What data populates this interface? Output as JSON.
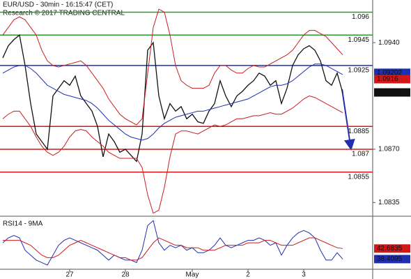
{
  "chart_data": [
    {
      "type": "line",
      "title": "EUR/USD - 30min - 16:15:47 (CET)",
      "subtitle": "Research © 2017 TRADING CENTRAL",
      "categories": [
        null,
        null,
        null,
        null,
        null,
        null,
        null,
        null,
        null,
        null,
        null,
        null,
        "27",
        null,
        null,
        null,
        null,
        null,
        null,
        null,
        null,
        null,
        "28",
        null,
        null,
        null,
        null,
        null,
        null,
        null,
        null,
        null,
        null,
        null,
        "May",
        null,
        null,
        null,
        null,
        null,
        null,
        null,
        null,
        null,
        "2",
        null,
        null,
        null,
        null,
        null,
        null,
        null,
        null,
        null,
        "3",
        null,
        null,
        null,
        null,
        null,
        null,
        null
      ],
      "series": [
        {
          "color": "#111111",
          "values": [
            1.093,
            1.0938,
            1.0942,
            1.0945,
            1.0925,
            1.09,
            1.088,
            1.0875,
            1.087,
            1.0905,
            1.091,
            1.0915,
            1.0912,
            1.0918,
            1.0905,
            1.09,
            1.0895,
            1.0885,
            1.0865,
            1.088,
            1.0875,
            1.0868,
            1.087,
            1.0866,
            1.0862,
            1.088,
            1.0935,
            1.094,
            1.0905,
            1.089,
            1.09,
            1.0895,
            1.0898,
            1.089,
            1.0893,
            1.0888,
            1.0887,
            1.0895,
            1.09,
            1.0915,
            1.0905,
            1.0898,
            1.0905,
            1.0908,
            1.0912,
            1.0915,
            1.092,
            1.0918,
            1.0912,
            1.0915,
            1.09,
            1.091,
            1.0925,
            1.0932,
            1.0936,
            1.0938,
            1.0935,
            1.0928,
            1.0915,
            1.0912,
            1.092,
            1.0907
          ]
        },
        {
          "color": "#1f2fb0",
          "values": [
            1.092,
            1.0922,
            1.0924,
            1.0925,
            1.0925,
            1.0923,
            1.092,
            1.0916,
            1.0912,
            1.091,
            1.0908,
            1.0906,
            1.0905,
            1.0904,
            1.0903,
            1.0902,
            1.09,
            1.0897,
            1.0893,
            1.0889,
            1.0886,
            1.0883,
            1.088,
            1.0878,
            1.0877,
            1.0876,
            1.0877,
            1.088,
            1.0884,
            1.0887,
            1.0889,
            1.0891,
            1.0892,
            1.0893,
            1.0894,
            1.0895,
            1.0895,
            1.0896,
            1.0897,
            1.0898,
            1.0899,
            1.09,
            1.0901,
            1.0902,
            1.0903,
            1.0905,
            1.0907,
            1.0909,
            1.0911,
            1.0912,
            1.0912,
            1.0913,
            1.0915,
            1.0918,
            1.0921,
            1.0924,
            1.0926,
            1.0926,
            1.0925,
            1.0923,
            1.0921,
            1.0919
          ]
        },
        {
          "color": "#c81e1e",
          "values": [
            1.0945,
            1.095,
            1.0955,
            1.0957,
            1.0955,
            1.095,
            1.0945,
            1.0935,
            1.0928,
            1.0925,
            1.0924,
            1.0925,
            1.0926,
            1.0927,
            1.0928,
            1.0925,
            1.092,
            1.0915,
            1.091,
            1.0903,
            1.0898,
            1.0893,
            1.089,
            1.0888,
            1.0886,
            1.089,
            1.092,
            1.095,
            1.0962,
            1.096,
            1.0945,
            1.0925,
            1.0915,
            1.0912,
            1.091,
            1.091,
            1.091,
            1.0912,
            1.092,
            1.0925,
            1.0925,
            1.0922,
            1.092,
            1.092,
            1.0923,
            1.0925,
            1.0924,
            1.0924,
            1.0926,
            1.0928,
            1.093,
            1.0932,
            1.0935,
            1.094,
            1.0945,
            1.0948,
            1.0948,
            1.0946,
            1.0944,
            1.094,
            1.0936,
            1.0932
          ]
        },
        {
          "color": "#c81e1e",
          "values": [
            1.089,
            1.0893,
            1.0895,
            1.0895,
            1.089,
            1.0885,
            1.0878,
            1.0872,
            1.0868,
            1.0866,
            1.0868,
            1.0872,
            1.0878,
            1.0882,
            1.0883,
            1.0882,
            1.0878,
            1.0875,
            1.0872,
            1.0868,
            1.0866,
            1.0864,
            1.0864,
            1.0864,
            1.0864,
            1.0858,
            1.084,
            1.0828,
            1.083,
            1.0845,
            1.0865,
            1.088,
            1.0882,
            1.0882,
            1.0881,
            1.088,
            1.0882,
            1.0884,
            1.0886,
            1.0885,
            1.0886,
            1.0888,
            1.089,
            1.089,
            1.0891,
            1.0892,
            1.0892,
            1.0893,
            1.0894,
            1.0893,
            1.0893,
            1.0895,
            1.0897,
            1.09,
            1.0903,
            1.0905,
            1.0904,
            1.0902,
            1.09,
            1.0898,
            1.0896,
            1.0894
          ]
        }
      ],
      "levels": [
        {
          "value": 1.096,
          "color": "#2e9a2e"
        },
        {
          "value": 1.0945,
          "color": "#2e9a2e"
        },
        {
          "value": 1.0925,
          "color": "#1f2fb0"
        },
        {
          "value": 1.0885,
          "color": "#d01818"
        },
        {
          "value": 1.087,
          "color": "#d01818"
        },
        {
          "value": 1.0855,
          "color": "#d01818"
        }
      ],
      "price_labels": [
        {
          "value": 1.09202,
          "label": "1.09202",
          "color": "#1f2fb0"
        },
        {
          "value": 1.0916,
          "label": "1.0916",
          "color": "#d01818"
        },
        {
          "value": 1.09073,
          "label": "1.09073",
          "color": "#111111"
        }
      ],
      "ylim": [
        1.0826,
        1.0968
      ],
      "yticks": [
        {
          "value": 1.094,
          "label": "1.0940"
        },
        {
          "value": 1.087,
          "label": "1.0870"
        },
        1.0835
      ]
    },
    {
      "type": "line",
      "title": "RSI14 - 9MA",
      "series": [
        {
          "color": "#1f2fb0",
          "values": [
            45,
            47,
            48,
            47,
            42,
            40,
            38,
            37,
            36,
            40,
            44,
            46,
            47,
            46,
            45,
            44,
            43,
            42,
            40,
            38,
            40,
            39,
            38,
            38,
            37,
            42,
            52,
            54,
            45,
            42,
            44,
            43,
            44,
            42,
            43,
            41,
            41,
            42,
            44,
            47,
            44,
            43,
            44,
            45,
            46,
            46,
            47,
            46,
            44,
            45,
            40,
            44,
            47,
            49,
            50,
            49,
            47,
            42,
            38,
            38,
            41,
            38.4095
          ]
        },
        {
          "color": "#d01818",
          "values": [
            46,
            46,
            46,
            46,
            45,
            44,
            42,
            40,
            39,
            39,
            40,
            42,
            44,
            45,
            46,
            45,
            44,
            43,
            42,
            41,
            40,
            39,
            39,
            38,
            38,
            39,
            42,
            45,
            47,
            46,
            45,
            44,
            44,
            43,
            43,
            43,
            42,
            42,
            42,
            43,
            44,
            44,
            44,
            44,
            45,
            45,
            45,
            46,
            46,
            45,
            44,
            44,
            44,
            45,
            46,
            47,
            47,
            46,
            45,
            44,
            43,
            42.6835
          ]
        }
      ],
      "ylim": [
        34.3,
        55.2
      ]
    }
  ]
}
